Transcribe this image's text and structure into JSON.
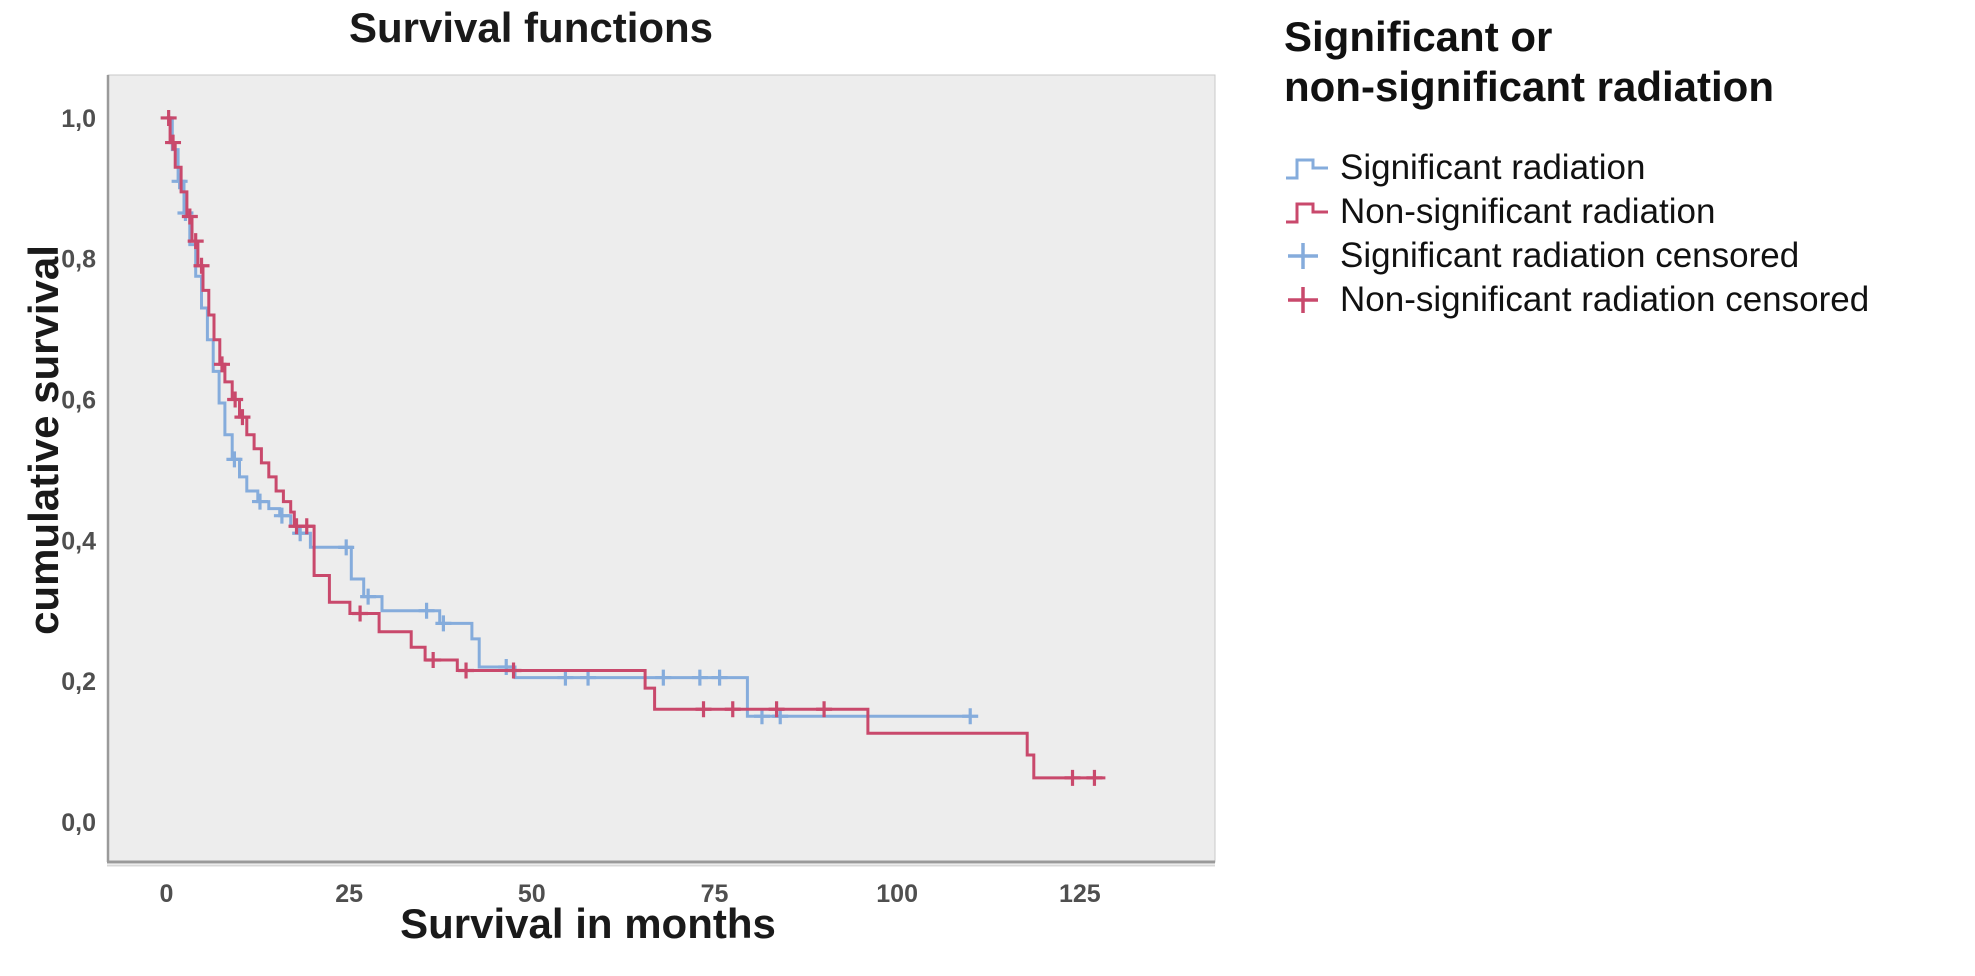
{
  "title": "Survival functions",
  "x_axis": {
    "label": "Survival in months"
  },
  "y_axis": {
    "label": "cumulative survival"
  },
  "legend": {
    "title": "Significant or\nnon-significant radiation",
    "items": [
      {
        "label": "Significant radiation",
        "swatch": "step",
        "color_key": "significant"
      },
      {
        "label": "Non-significant radiation",
        "swatch": "step",
        "color_key": "non_significant"
      },
      {
        "label": "Significant radiation censored",
        "swatch": "plus",
        "color_key": "significant"
      },
      {
        "label": "Non-significant radiation censored",
        "swatch": "plus",
        "color_key": "non_significant"
      }
    ]
  },
  "colors": {
    "significant": "#85ACDC",
    "non_significant": "#C9496C",
    "panel_bg": "#EDEDED",
    "panel_border": "#C9C9C9",
    "axis_line": "#9A9A9A",
    "tick_text": "#4F4F4F"
  },
  "chart_data": {
    "type": "line",
    "subtype": "kaplan-meier-step",
    "title": "Survival functions",
    "xlabel": "Survival in months",
    "ylabel": "cumulative survival",
    "xlim": [
      -8,
      143.5
    ],
    "ylim": [
      -0.057,
      1.061
    ],
    "grid": false,
    "legend_position": "right",
    "x_ticks": [
      {
        "value": 0,
        "label": "0"
      },
      {
        "value": 25,
        "label": "25"
      },
      {
        "value": 50,
        "label": "50"
      },
      {
        "value": 75,
        "label": "75"
      },
      {
        "value": 100,
        "label": "100"
      },
      {
        "value": 125,
        "label": "125"
      }
    ],
    "y_ticks": [
      {
        "value": 0.0,
        "label": "0,0"
      },
      {
        "value": 0.2,
        "label": "0,2"
      },
      {
        "value": 0.4,
        "label": "0,4"
      },
      {
        "value": 0.6,
        "label": "0,6"
      },
      {
        "value": 0.8,
        "label": "0,8"
      },
      {
        "value": 1.0,
        "label": "1,0"
      }
    ],
    "series": [
      {
        "name": "Significant radiation",
        "color_key": "significant",
        "points": [
          [
            0,
            1.0
          ],
          [
            0.8,
            1.0
          ],
          [
            0.8,
            0.955
          ],
          [
            1.6,
            0.955
          ],
          [
            1.6,
            0.91
          ],
          [
            2.4,
            0.91
          ],
          [
            2.4,
            0.865
          ],
          [
            3.2,
            0.865
          ],
          [
            3.2,
            0.82
          ],
          [
            4.0,
            0.82
          ],
          [
            4.0,
            0.775
          ],
          [
            4.8,
            0.775
          ],
          [
            4.8,
            0.73
          ],
          [
            5.6,
            0.73
          ],
          [
            5.6,
            0.685
          ],
          [
            6.4,
            0.685
          ],
          [
            6.4,
            0.64
          ],
          [
            7.2,
            0.64
          ],
          [
            7.2,
            0.595
          ],
          [
            8.0,
            0.595
          ],
          [
            8.0,
            0.55
          ],
          [
            9.0,
            0.55
          ],
          [
            9.0,
            0.515
          ],
          [
            10.0,
            0.515
          ],
          [
            10.0,
            0.49
          ],
          [
            11.0,
            0.49
          ],
          [
            11.0,
            0.47
          ],
          [
            12.5,
            0.47
          ],
          [
            12.5,
            0.455
          ],
          [
            14.0,
            0.455
          ],
          [
            14.0,
            0.445
          ],
          [
            15.5,
            0.445
          ],
          [
            15.5,
            0.435
          ],
          [
            17.0,
            0.435
          ],
          [
            17.0,
            0.42
          ],
          [
            18.0,
            0.42
          ],
          [
            18.0,
            0.41
          ],
          [
            19.7,
            0.41
          ],
          [
            19.7,
            0.39
          ],
          [
            25.3,
            0.39
          ],
          [
            25.3,
            0.345
          ],
          [
            27.0,
            0.345
          ],
          [
            27.0,
            0.32
          ],
          [
            29.5,
            0.32
          ],
          [
            29.5,
            0.3
          ],
          [
            37.4,
            0.3
          ],
          [
            37.4,
            0.282
          ],
          [
            41.8,
            0.282
          ],
          [
            41.8,
            0.26
          ],
          [
            42.8,
            0.26
          ],
          [
            42.8,
            0.22
          ],
          [
            47.7,
            0.22
          ],
          [
            47.7,
            0.205
          ],
          [
            79.5,
            0.205
          ],
          [
            79.5,
            0.15
          ],
          [
            110,
            0.15
          ]
        ],
        "censored": [
          [
            1.8,
            0.91
          ],
          [
            2.6,
            0.865
          ],
          [
            9.3,
            0.515
          ],
          [
            12.8,
            0.455
          ],
          [
            15.8,
            0.435
          ],
          [
            18.3,
            0.41
          ],
          [
            24.6,
            0.39
          ],
          [
            27.6,
            0.32
          ],
          [
            35.6,
            0.3
          ],
          [
            37.9,
            0.282
          ],
          [
            46.5,
            0.22
          ],
          [
            54.6,
            0.205
          ],
          [
            57.7,
            0.205
          ],
          [
            68,
            0.205
          ],
          [
            73,
            0.205
          ],
          [
            75.7,
            0.205
          ],
          [
            81.5,
            0.15
          ],
          [
            84,
            0.15
          ],
          [
            110,
            0.15
          ]
        ]
      },
      {
        "name": "Non-significant radiation",
        "color_key": "non_significant",
        "points": [
          [
            0,
            1.0
          ],
          [
            0.5,
            1.0
          ],
          [
            0.5,
            0.965
          ],
          [
            1.2,
            0.965
          ],
          [
            1.2,
            0.93
          ],
          [
            2.0,
            0.93
          ],
          [
            2.0,
            0.895
          ],
          [
            2.8,
            0.895
          ],
          [
            2.8,
            0.86
          ],
          [
            3.5,
            0.86
          ],
          [
            3.5,
            0.825
          ],
          [
            4.3,
            0.825
          ],
          [
            4.3,
            0.79
          ],
          [
            5.0,
            0.79
          ],
          [
            5.0,
            0.755
          ],
          [
            5.8,
            0.755
          ],
          [
            5.8,
            0.72
          ],
          [
            6.5,
            0.72
          ],
          [
            6.5,
            0.685
          ],
          [
            7.3,
            0.685
          ],
          [
            7.3,
            0.65
          ],
          [
            8.0,
            0.65
          ],
          [
            8.0,
            0.625
          ],
          [
            9.0,
            0.625
          ],
          [
            9.0,
            0.6
          ],
          [
            10.0,
            0.6
          ],
          [
            10.0,
            0.575
          ],
          [
            11.0,
            0.575
          ],
          [
            11.0,
            0.55
          ],
          [
            12.0,
            0.55
          ],
          [
            12.0,
            0.53
          ],
          [
            13.0,
            0.53
          ],
          [
            13.0,
            0.51
          ],
          [
            14.0,
            0.51
          ],
          [
            14.0,
            0.49
          ],
          [
            15.0,
            0.49
          ],
          [
            15.0,
            0.47
          ],
          [
            16.0,
            0.47
          ],
          [
            16.0,
            0.455
          ],
          [
            17.0,
            0.455
          ],
          [
            17.0,
            0.44
          ],
          [
            17.5,
            0.44
          ],
          [
            17.5,
            0.42
          ],
          [
            20.2,
            0.42
          ],
          [
            20.2,
            0.35
          ],
          [
            22.3,
            0.35
          ],
          [
            22.3,
            0.312
          ],
          [
            25.1,
            0.312
          ],
          [
            25.1,
            0.296
          ],
          [
            29.1,
            0.296
          ],
          [
            29.1,
            0.27
          ],
          [
            33.5,
            0.27
          ],
          [
            33.5,
            0.248
          ],
          [
            35.4,
            0.248
          ],
          [
            35.4,
            0.23
          ],
          [
            39.8,
            0.23
          ],
          [
            39.8,
            0.215
          ],
          [
            65.5,
            0.215
          ],
          [
            65.5,
            0.19
          ],
          [
            66.8,
            0.19
          ],
          [
            66.8,
            0.16
          ],
          [
            96.0,
            0.16
          ],
          [
            96.0,
            0.126
          ],
          [
            117.8,
            0.126
          ],
          [
            117.8,
            0.095
          ],
          [
            118.7,
            0.095
          ],
          [
            118.7,
            0.0625
          ],
          [
            128.5,
            0.0625
          ]
        ],
        "censored": [
          [
            0.3,
            1.0
          ],
          [
            0.9,
            0.965
          ],
          [
            3.2,
            0.86
          ],
          [
            4.0,
            0.825
          ],
          [
            4.8,
            0.79
          ],
          [
            7.6,
            0.65
          ],
          [
            9.4,
            0.6
          ],
          [
            10.4,
            0.575
          ],
          [
            17.8,
            0.42
          ],
          [
            19.2,
            0.42
          ],
          [
            26.5,
            0.296
          ],
          [
            36.5,
            0.23
          ],
          [
            41.0,
            0.215
          ],
          [
            47.5,
            0.215
          ],
          [
            73.5,
            0.16
          ],
          [
            77.5,
            0.16
          ],
          [
            83.5,
            0.16
          ],
          [
            90.0,
            0.16
          ],
          [
            124,
            0.0625
          ],
          [
            127,
            0.0625
          ]
        ]
      }
    ]
  }
}
